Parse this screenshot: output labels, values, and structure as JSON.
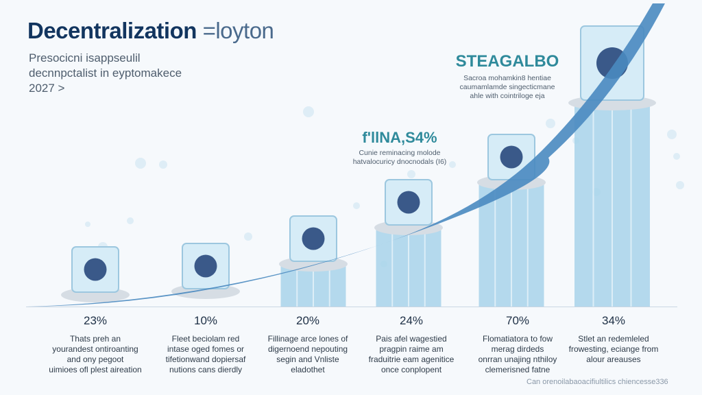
{
  "title": "Decentralization",
  "title_suffix": "=loyton",
  "subtitle_lines": [
    "Presocicni isappseulil",
    "decnnpctalist in eyptomakece",
    "2027 >"
  ],
  "callouts": [
    {
      "big": "STEAGALBO",
      "lines": [
        "Sacroa mohamkin8 hentiae",
        "caumamlamde singecticmane",
        "ahle with cointriloge eja"
      ]
    },
    {
      "big": "f'llNA,S4%",
      "lines": [
        "Cunie reminacing molode",
        "hatvalocuricy dnocnodals (I6)"
      ]
    }
  ],
  "captions": [
    {
      "pct": "23%",
      "lines": [
        "Thats preh an",
        "yourandest ontiroanting",
        "and ony pegoot",
        "uimioes ofl plest aireation"
      ]
    },
    {
      "pct": "10%",
      "lines": [
        "Fleet beciolam red",
        "intase oged fomes or",
        "tifetionwand dopiersaf",
        "nutions cans dierdly"
      ]
    },
    {
      "pct": "20%",
      "lines": [
        "Fillinage arce lones of",
        "digernoend nepouting",
        "segin and Vnliste",
        "eladothet"
      ]
    },
    {
      "pct": "24%",
      "lines": [
        "Pais afel wagestied",
        "pragpin raime am",
        "fraduitrie eam agenitice",
        "once conplopent"
      ]
    },
    {
      "pct": "70%",
      "lines": [
        "Flomatiatora to fow",
        "merag dirdeds",
        "onrran unajing nthiloy",
        "clemerisned fatne"
      ]
    },
    {
      "pct": "34%",
      "lines": [
        "Stlet an redemleled",
        "frowesting, eciange from",
        "alour areauses",
        ""
      ]
    }
  ],
  "footer": "Can orenoilabaoacifiultilics chiencesse336",
  "colors": {
    "title": "#12355f",
    "accent": "#2f8a9b",
    "bar": "#a8d4ea",
    "bar_dark": "#6fb5d8",
    "disc": "#d6dde4"
  },
  "chart_data": {
    "type": "bar",
    "categories": [
      "",
      "",
      "",
      "",
      "",
      ""
    ],
    "values": [
      23,
      10,
      20,
      24,
      70,
      34
    ],
    "tick_labels": [
      "23%",
      "10%",
      "20%",
      "24%",
      "70%",
      "34%"
    ],
    "icons": [
      "globe-network-icon",
      "server-terminal-icon",
      "database-icon",
      "blockchain-cubes-icon",
      "city-network-icon",
      "crypto-nodes-icon"
    ]
  }
}
